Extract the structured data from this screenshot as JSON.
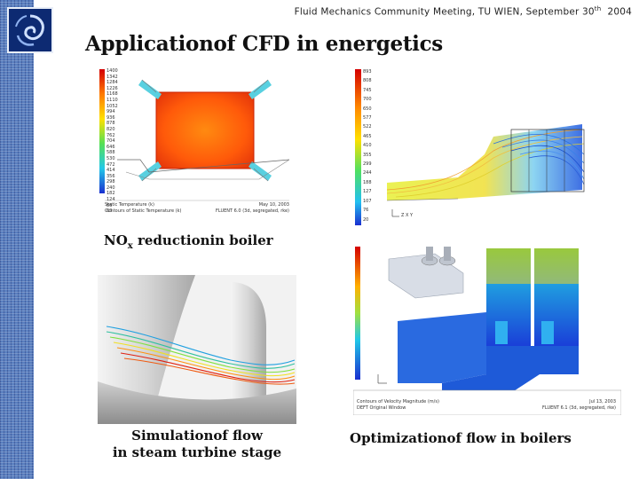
{
  "header": {
    "text": "Fluid Mechanics Community Meeting, TU WIEN, September 30",
    "sup": "th",
    "year": "2004"
  },
  "title": "Applicationof CFD in energetics",
  "captions": {
    "nox_pre": "NO",
    "nox_sub": "x",
    "nox_post": " reductionin boiler",
    "turbine_line1": "Simulationof flow",
    "turbine_line2": "in steam turbine stage",
    "boilers": "Optimizationof flow in boilers"
  },
  "panel1": {
    "colorbar": [
      "1400",
      "1342",
      "1284",
      "1226",
      "1168",
      "1110",
      "1052",
      "994",
      "936",
      "878",
      "820",
      "762",
      "704",
      "646",
      "588",
      "530",
      "472",
      "414",
      "356",
      "298",
      "240",
      "182",
      "124",
      "86",
      "63"
    ],
    "footer_line1": "Static Temperature (k)",
    "footer_line2": "Contours of Static Temperature (k)",
    "footer_right1": "May 10, 2003",
    "footer_right2": "FLUENT 6.0 (3d, segregated, rke)"
  },
  "panel2": {
    "colorbar": [
      "893",
      "808",
      "745",
      "700",
      "650",
      "577",
      "522",
      "465",
      "410",
      "355",
      "299",
      "244",
      "188",
      "127",
      "107",
      "76",
      "20"
    ],
    "axis_label": "Z X Y"
  },
  "panel4": {
    "footer_line1": "Contours of Velocity Magnitude (m/s)",
    "footer_line2": "DEFT Original Window",
    "footer_right1": "Jul 13, 2003",
    "footer_right2": "FLUENT 6.1 (3d, segregated, rke)"
  },
  "colors": {
    "sidebar": "#5a7fbf",
    "logo": "#0d2a72",
    "title": "#111111"
  }
}
